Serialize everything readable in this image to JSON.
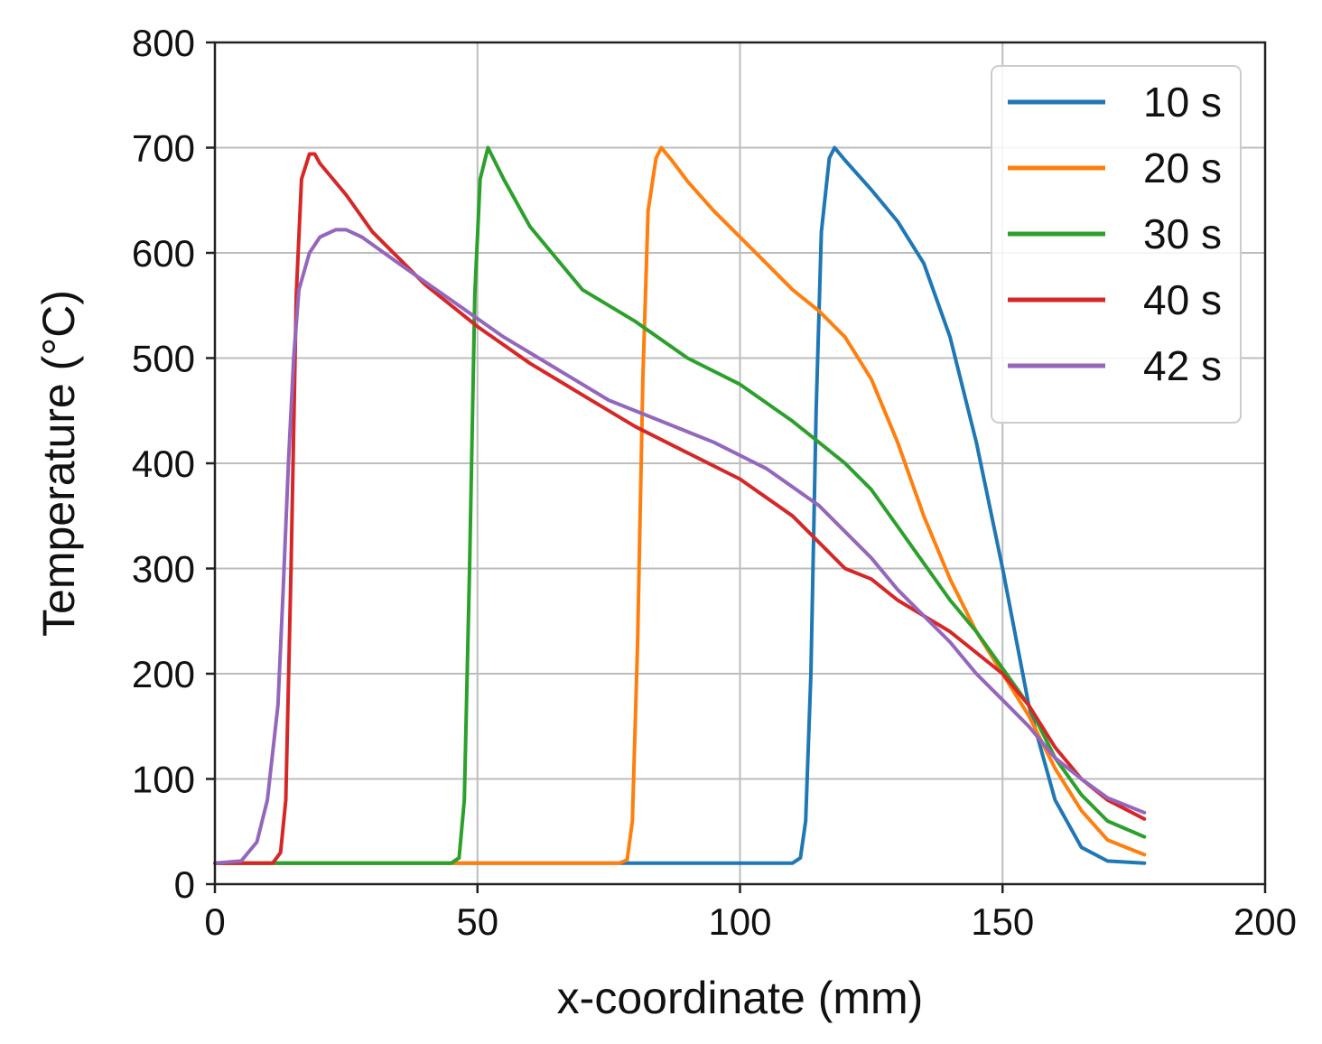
{
  "chart_data": {
    "type": "line",
    "title": "",
    "xlabel": "x-coordinate (mm)",
    "ylabel": "Temperature (°C)",
    "xlim": [
      0,
      200
    ],
    "ylim": [
      0,
      800
    ],
    "xticks": [
      0,
      50,
      100,
      150,
      200
    ],
    "yticks": [
      0,
      100,
      200,
      300,
      400,
      500,
      600,
      700,
      800
    ],
    "xtick_labels": [
      "0",
      "50",
      "100",
      "150",
      "200"
    ],
    "ytick_labels": [
      "0",
      "100",
      "200",
      "300",
      "400",
      "500",
      "600",
      "700",
      "800"
    ],
    "grid": true,
    "legend_position": "top-right",
    "series": [
      {
        "name": "10 s",
        "color": "#1f77b4",
        "points": [
          [
            0,
            20
          ],
          [
            100,
            20
          ],
          [
            110,
            20
          ],
          [
            111.5,
            25
          ],
          [
            112.5,
            60
          ],
          [
            113.5,
            200
          ],
          [
            114.5,
            450
          ],
          [
            115.5,
            620
          ],
          [
            117,
            690
          ],
          [
            118,
            700
          ],
          [
            120,
            688
          ],
          [
            125,
            660
          ],
          [
            130,
            630
          ],
          [
            135,
            590
          ],
          [
            140,
            520
          ],
          [
            145,
            420
          ],
          [
            150,
            300
          ],
          [
            155,
            170
          ],
          [
            160,
            80
          ],
          [
            165,
            35
          ],
          [
            170,
            22
          ],
          [
            177,
            20
          ]
        ]
      },
      {
        "name": "20 s",
        "color": "#ff7f0e",
        "points": [
          [
            0,
            20
          ],
          [
            77,
            20
          ],
          [
            78.5,
            23
          ],
          [
            79.5,
            60
          ],
          [
            80.5,
            230
          ],
          [
            81.5,
            480
          ],
          [
            82.5,
            640
          ],
          [
            84,
            690
          ],
          [
            85,
            700
          ],
          [
            87,
            688
          ],
          [
            90,
            668
          ],
          [
            95,
            640
          ],
          [
            100,
            615
          ],
          [
            105,
            590
          ],
          [
            110,
            565
          ],
          [
            115,
            545
          ],
          [
            120,
            520
          ],
          [
            125,
            480
          ],
          [
            130,
            420
          ],
          [
            135,
            350
          ],
          [
            140,
            290
          ],
          [
            145,
            240
          ],
          [
            150,
            200
          ],
          [
            155,
            160
          ],
          [
            160,
            110
          ],
          [
            165,
            70
          ],
          [
            170,
            42
          ],
          [
            177,
            28
          ]
        ]
      },
      {
        "name": "30 s",
        "color": "#2ca02c",
        "points": [
          [
            0,
            20
          ],
          [
            45,
            20
          ],
          [
            46.5,
            25
          ],
          [
            47.5,
            80
          ],
          [
            48.5,
            300
          ],
          [
            49.5,
            560
          ],
          [
            50.5,
            670
          ],
          [
            52,
            700
          ],
          [
            55,
            670
          ],
          [
            60,
            625
          ],
          [
            70,
            565
          ],
          [
            80,
            535
          ],
          [
            90,
            500
          ],
          [
            100,
            475
          ],
          [
            110,
            440
          ],
          [
            120,
            400
          ],
          [
            125,
            375
          ],
          [
            130,
            340
          ],
          [
            135,
            305
          ],
          [
            140,
            270
          ],
          [
            145,
            240
          ],
          [
            150,
            205
          ],
          [
            155,
            170
          ],
          [
            160,
            120
          ],
          [
            165,
            85
          ],
          [
            170,
            60
          ],
          [
            177,
            45
          ]
        ]
      },
      {
        "name": "40 s",
        "color": "#d62728",
        "points": [
          [
            0,
            20
          ],
          [
            11,
            20
          ],
          [
            12.5,
            30
          ],
          [
            13.5,
            80
          ],
          [
            14.5,
            300
          ],
          [
            15.5,
            560
          ],
          [
            16.5,
            670
          ],
          [
            18,
            694
          ],
          [
            19,
            694
          ],
          [
            20,
            685
          ],
          [
            25,
            655
          ],
          [
            30,
            620
          ],
          [
            40,
            570
          ],
          [
            50,
            530
          ],
          [
            60,
            495
          ],
          [
            70,
            465
          ],
          [
            80,
            435
          ],
          [
            90,
            410
          ],
          [
            100,
            385
          ],
          [
            110,
            350
          ],
          [
            120,
            300
          ],
          [
            125,
            290
          ],
          [
            130,
            270
          ],
          [
            140,
            240
          ],
          [
            150,
            200
          ],
          [
            155,
            170
          ],
          [
            160,
            130
          ],
          [
            165,
            100
          ],
          [
            170,
            80
          ],
          [
            177,
            62
          ]
        ]
      },
      {
        "name": "42 s",
        "color": "#9467bd",
        "points": [
          [
            0,
            20
          ],
          [
            5,
            22
          ],
          [
            8,
            40
          ],
          [
            10,
            80
          ],
          [
            12,
            170
          ],
          [
            13,
            280
          ],
          [
            14,
            400
          ],
          [
            15,
            500
          ],
          [
            16,
            565
          ],
          [
            18,
            600
          ],
          [
            20,
            615
          ],
          [
            23,
            622
          ],
          [
            25,
            622
          ],
          [
            28,
            615
          ],
          [
            35,
            590
          ],
          [
            45,
            555
          ],
          [
            55,
            520
          ],
          [
            65,
            490
          ],
          [
            75,
            460
          ],
          [
            85,
            440
          ],
          [
            95,
            420
          ],
          [
            105,
            395
          ],
          [
            115,
            360
          ],
          [
            120,
            335
          ],
          [
            125,
            310
          ],
          [
            130,
            280
          ],
          [
            135,
            255
          ],
          [
            140,
            230
          ],
          [
            145,
            200
          ],
          [
            150,
            175
          ],
          [
            155,
            150
          ],
          [
            160,
            120
          ],
          [
            165,
            100
          ],
          [
            170,
            82
          ],
          [
            177,
            68
          ]
        ]
      }
    ]
  }
}
